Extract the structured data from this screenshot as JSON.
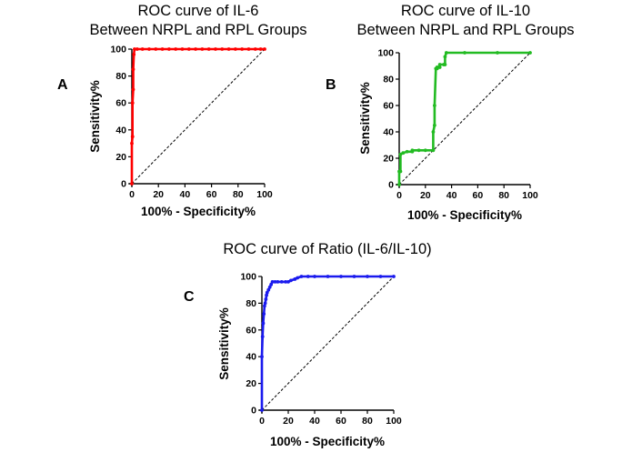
{
  "chart_data": [
    {
      "type": "line",
      "panel_label": "A",
      "title_lines": [
        "ROC curve of IL-6",
        "Between NRPL and RPL Groups"
      ],
      "xlabel": "100% - Specificity%",
      "ylabel": "Sensitivity%",
      "xlim": [
        0,
        100
      ],
      "ylim": [
        0,
        100
      ],
      "xticks": [
        0,
        20,
        40,
        60,
        80,
        100
      ],
      "yticks": [
        0,
        20,
        40,
        60,
        80,
        100
      ],
      "grid": false,
      "reference_line": "diagonal-dashed",
      "series": [
        {
          "color": "#ff0000",
          "x": [
            0,
            0,
            0.5,
            0.5,
            1,
            1,
            1.5,
            2,
            4,
            8,
            13,
            18,
            23,
            28,
            33,
            38,
            43,
            48,
            53,
            58,
            63,
            68,
            73,
            78,
            83,
            88,
            93,
            97,
            100
          ],
          "y": [
            0,
            30,
            35,
            60,
            70,
            85,
            96,
            100,
            100,
            100,
            100,
            100,
            100,
            100,
            100,
            100,
            100,
            100,
            100,
            100,
            100,
            100,
            100,
            100,
            100,
            100,
            100,
            100,
            100
          ]
        }
      ]
    },
    {
      "type": "line",
      "panel_label": "B",
      "title_lines": [
        "ROC curve of IL-10",
        "Between NRPL and RPL Groups"
      ],
      "xlabel": "100% - Specificity%",
      "ylabel": "Sensitivity%",
      "xlim": [
        0,
        100
      ],
      "ylim": [
        0,
        100
      ],
      "xticks": [
        0,
        20,
        40,
        60,
        80,
        100
      ],
      "yticks": [
        0,
        20,
        40,
        60,
        80,
        100
      ],
      "grid": false,
      "reference_line": "diagonal-dashed",
      "series": [
        {
          "color": "#22bb22",
          "x": [
            0,
            0,
            1,
            1,
            3,
            6,
            10,
            10,
            15,
            20,
            26,
            26,
            27,
            27,
            28,
            29,
            29,
            31,
            31,
            34,
            35,
            35,
            36,
            50,
            75,
            100
          ],
          "y": [
            0,
            10,
            10,
            23,
            24,
            25,
            25,
            26,
            26,
            26,
            26,
            40,
            45,
            60,
            88,
            88,
            89,
            89,
            91,
            91,
            91,
            97,
            100,
            100,
            100,
            100
          ]
        }
      ]
    },
    {
      "type": "line",
      "panel_label": "C",
      "title_lines": [
        "ROC curve of Ratio (IL-6/IL-10)"
      ],
      "xlabel": "100% - Specificity%",
      "ylabel": "Sensitivity%",
      "xlim": [
        0,
        100
      ],
      "ylim": [
        0,
        100
      ],
      "xticks": [
        0,
        20,
        40,
        60,
        80,
        100
      ],
      "yticks": [
        0,
        20,
        40,
        60,
        80,
        100
      ],
      "grid": false,
      "reference_line": "diagonal-dashed",
      "series": [
        {
          "color": "#1a1aee",
          "x": [
            0,
            0,
            0.5,
            1,
            1.5,
            2,
            2.5,
            3,
            3.5,
            4,
            5,
            6,
            7,
            8,
            10,
            12,
            15,
            18,
            20,
            22,
            25,
            27,
            30,
            35,
            40,
            50,
            60,
            70,
            80,
            90,
            100
          ],
          "y": [
            0,
            40,
            55,
            65,
            72,
            78,
            80,
            83,
            86,
            88,
            90,
            92,
            94,
            96,
            96,
            96,
            96,
            96,
            96,
            97,
            98,
            99,
            100,
            100,
            100,
            100,
            100,
            100,
            100,
            100,
            100
          ]
        }
      ]
    }
  ]
}
